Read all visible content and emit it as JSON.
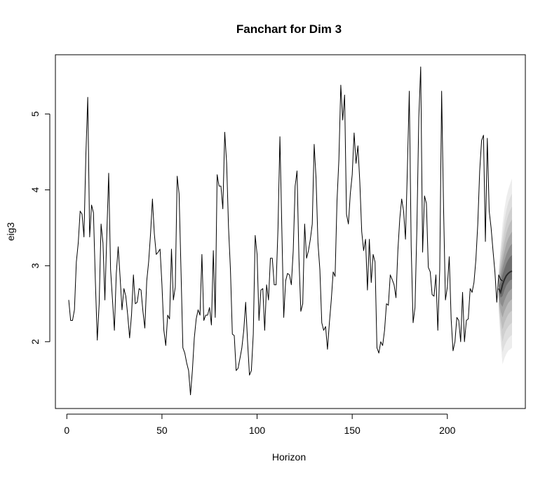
{
  "chart_data": {
    "type": "line",
    "title": "Fanchart for Dim 3",
    "xlabel": "Horizon",
    "ylabel": "eig3",
    "xlim": [
      -6,
      241
    ],
    "ylim": [
      1.12,
      5.78
    ],
    "xticks": [
      0,
      50,
      100,
      150,
      200
    ],
    "yticks": [
      2,
      3,
      4,
      5
    ],
    "xtick_labels": [
      "0",
      "50",
      "100",
      "150",
      "200"
    ],
    "ytick_labels": [
      "2",
      "3",
      "4",
      "5"
    ],
    "grid": false,
    "legend": "none",
    "series": [
      {
        "color": "#000000",
        "x_start": 1,
        "values": [
          2.55,
          2.28,
          2.28,
          2.42,
          3.05,
          3.3,
          3.72,
          3.68,
          3.38,
          4.45,
          5.22,
          3.38,
          3.8,
          3.7,
          2.8,
          2.02,
          2.5,
          3.55,
          3.3,
          2.55,
          3.4,
          4.22,
          2.95,
          2.55,
          2.15,
          2.9,
          3.25,
          2.85,
          2.42,
          2.7,
          2.6,
          2.35,
          2.05,
          2.35,
          2.88,
          2.5,
          2.52,
          2.7,
          2.68,
          2.4,
          2.18,
          2.8,
          3.05,
          3.42,
          3.88,
          3.42,
          3.15,
          3.18,
          3.22,
          2.75,
          2.15,
          1.95,
          2.35,
          2.3,
          3.22,
          2.55,
          2.72,
          4.18,
          3.95,
          2.95,
          1.92,
          1.85,
          1.72,
          1.62,
          1.3,
          1.62,
          2.05,
          2.3,
          2.42,
          2.35,
          3.15,
          2.28,
          2.35,
          2.35,
          2.45,
          2.22,
          3.2,
          2.32,
          4.2,
          4.05,
          4.05,
          3.75,
          4.76,
          4.35,
          3.5,
          2.95,
          2.1,
          2.08,
          1.62,
          1.65,
          1.78,
          1.92,
          2.15,
          2.52,
          2.0,
          1.56,
          1.62,
          2.1,
          3.4,
          3.15,
          2.28,
          2.68,
          2.7,
          2.15,
          2.75,
          2.55,
          3.1,
          3.1,
          2.75,
          2.75,
          3.5,
          4.7,
          3.5,
          2.32,
          2.8,
          2.9,
          2.88,
          2.75,
          3.2,
          4.05,
          4.25,
          3.1,
          2.4,
          2.5,
          3.55,
          3.1,
          3.2,
          3.35,
          3.55,
          4.6,
          4.15,
          3.3,
          2.95,
          2.25,
          2.15,
          2.2,
          1.9,
          2.25,
          2.55,
          2.92,
          2.86,
          3.85,
          4.4,
          5.38,
          4.92,
          5.25,
          3.68,
          3.55,
          3.95,
          4.2,
          4.75,
          4.35,
          4.58,
          4.1,
          3.45,
          3.2,
          3.35,
          2.68,
          3.35,
          2.78,
          3.15,
          3.05,
          1.92,
          1.85,
          2.0,
          1.95,
          2.15,
          2.5,
          2.48,
          2.88,
          2.82,
          2.75,
          2.58,
          3.2,
          3.62,
          3.88,
          3.72,
          3.35,
          4.28,
          5.3,
          3.25,
          2.25,
          2.45,
          3.5,
          4.95,
          5.62,
          3.18,
          3.92,
          3.82,
          2.98,
          2.92,
          2.62,
          2.6,
          2.88,
          2.15,
          2.95,
          5.3,
          3.78,
          2.55,
          2.72,
          3.12,
          2.3,
          1.88,
          2.0,
          2.32,
          2.28,
          2.0,
          2.65,
          2.0,
          2.28,
          2.3,
          2.7,
          2.65,
          2.78,
          3.08,
          3.55,
          4.25,
          4.65,
          4.72,
          3.32,
          4.68,
          3.72,
          3.5,
          3.2,
          2.92,
          2.52,
          2.88,
          2.82,
          2.8
        ]
      }
    ],
    "fan": {
      "x": [
        227,
        228,
        229,
        230,
        231,
        232,
        233,
        234
      ],
      "median": [
        2.7,
        2.65,
        2.75,
        2.82,
        2.87,
        2.9,
        2.92,
        2.93
      ],
      "upper": [
        [
          2.95,
          3.25,
          3.55,
          3.75,
          3.9,
          4.0,
          4.08,
          4.15
        ],
        [
          2.92,
          3.18,
          3.42,
          3.6,
          3.73,
          3.83,
          3.9,
          3.95
        ],
        [
          2.88,
          3.1,
          3.3,
          3.46,
          3.58,
          3.67,
          3.73,
          3.78
        ],
        [
          2.84,
          3.02,
          3.18,
          3.32,
          3.43,
          3.51,
          3.57,
          3.61
        ],
        [
          2.8,
          2.94,
          3.07,
          3.19,
          3.29,
          3.36,
          3.41,
          3.45
        ],
        [
          2.77,
          2.86,
          2.97,
          3.07,
          3.15,
          3.21,
          3.26,
          3.29
        ],
        [
          2.74,
          2.78,
          2.88,
          2.96,
          3.03,
          3.08,
          3.12,
          3.14
        ]
      ],
      "lower": [
        [
          2.4,
          2.0,
          1.7,
          1.78,
          1.84,
          1.88,
          1.9,
          1.92
        ],
        [
          2.44,
          2.1,
          1.86,
          1.94,
          2.0,
          2.04,
          2.07,
          2.09
        ],
        [
          2.48,
          2.2,
          2.0,
          2.1,
          2.16,
          2.2,
          2.23,
          2.25
        ],
        [
          2.52,
          2.3,
          2.16,
          2.25,
          2.31,
          2.36,
          2.39,
          2.41
        ],
        [
          2.56,
          2.4,
          2.32,
          2.4,
          2.46,
          2.51,
          2.54,
          2.56
        ],
        [
          2.6,
          2.5,
          2.46,
          2.54,
          2.6,
          2.65,
          2.68,
          2.7
        ],
        [
          2.65,
          2.58,
          2.6,
          2.68,
          2.74,
          2.78,
          2.81,
          2.82
        ]
      ],
      "band_colors": [
        "#ededed",
        "#dedede",
        "#cfcfcf",
        "#bdbdbd",
        "#a6a6a6",
        "#8c8c8c",
        "#6e6e6e"
      ],
      "median_color": "#2b2b2b"
    }
  }
}
